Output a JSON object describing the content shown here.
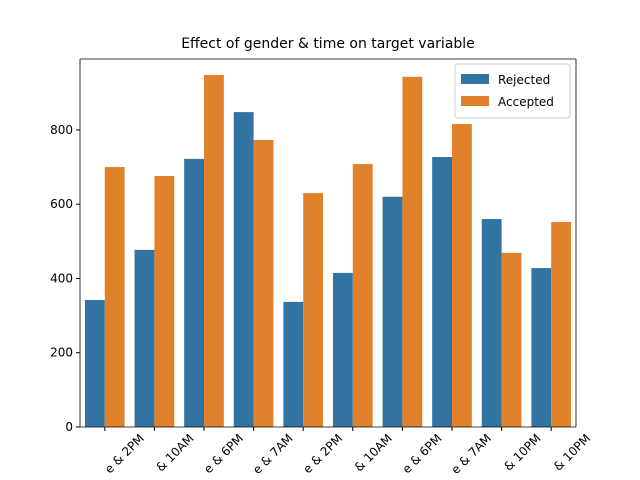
{
  "chart_data": {
    "type": "bar",
    "title": "Effect of gender & time on target variable",
    "categories": [
      "e & 2PM",
      "& 10AM",
      "e & 6PM",
      "e & 7AM",
      "e & 2PM",
      "& 10AM",
      "e & 6PM",
      "e & 7AM",
      "& 10PM",
      "& 10PM"
    ],
    "series": [
      {
        "name": "Rejected",
        "color": "#3274a1",
        "values": [
          342,
          477,
          722,
          848,
          337,
          415,
          620,
          727,
          560,
          428
        ]
      },
      {
        "name": "Accepted",
        "color": "#e1812c",
        "values": [
          700,
          676,
          948,
          773,
          630,
          708,
          943,
          816,
          469,
          552
        ]
      }
    ],
    "ylim": [
      0,
      991
    ],
    "yticks": [
      0,
      200,
      400,
      600,
      800
    ],
    "legend": "upper right"
  }
}
